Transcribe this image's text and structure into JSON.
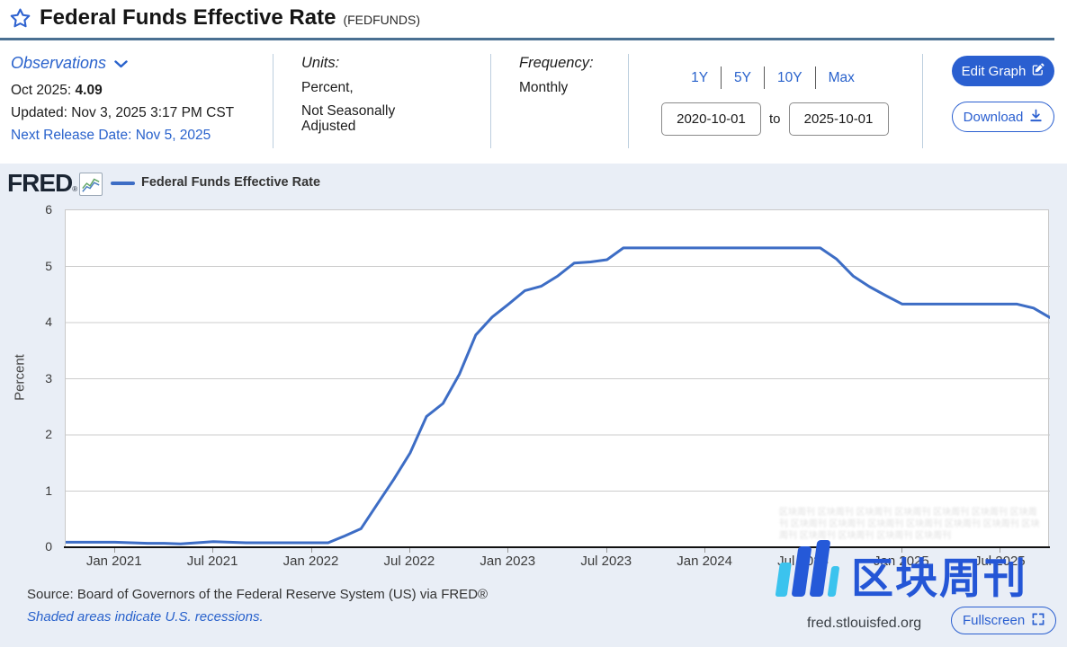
{
  "header": {
    "title": "Federal Funds Effective Rate",
    "series_id": "(FEDFUNDS)"
  },
  "info": {
    "observations": {
      "label": "Observations",
      "latest_period": "Oct 2025:",
      "latest_value": "4.09",
      "updated": "Updated: Nov 3, 2025 3:17 PM CST",
      "next_release": "Next Release Date: Nov 5, 2025"
    },
    "units": {
      "label": "Units:",
      "line1": "Percent,",
      "line2": "Not Seasonally Adjusted"
    },
    "frequency": {
      "label": "Frequency:",
      "value": "Monthly"
    },
    "range": {
      "presets": [
        "1Y",
        "5Y",
        "10Y",
        "Max"
      ],
      "start_date": "2020-10-01",
      "to_label": "to",
      "end_date": "2025-10-01"
    },
    "buttons": {
      "edit_graph": "Edit Graph",
      "download": "Download"
    }
  },
  "graph": {
    "brand": "FRED",
    "brand_reg": "®",
    "legend_label": "Federal Funds Effective Rate",
    "ylabel": "Percent"
  },
  "footer": {
    "source": "Source: Board of Governors of the Federal Reserve System (US) via FRED®",
    "recession_note": "Shaded areas indicate U.S. recessions.",
    "site": "fred.stlouisfed.org",
    "fullscreen_label": "Fullscreen"
  },
  "watermark": {
    "text": "区块周刊"
  },
  "colors": {
    "accent_blue": "#2962cc",
    "button_blue": "#2a5fd0",
    "line_blue": "#3d6dc5",
    "header_rule": "#4a7092",
    "section_bg": "#e9eef6",
    "grid": "#cccccc"
  },
  "chart_data": {
    "type": "line",
    "title": "Federal Funds Effective Rate",
    "xlabel": "",
    "ylabel": "Percent",
    "ylim": [
      0,
      6
    ],
    "y_ticks": [
      0,
      1,
      2,
      3,
      4,
      5,
      6
    ],
    "grid": true,
    "legend_position": "top-left",
    "x_start": "2020-10",
    "x_end": "2025-10",
    "frequency": "Monthly",
    "x_ticks": [
      {
        "month_index": 3,
        "label": "Jan 2021"
      },
      {
        "month_index": 9,
        "label": "Jul 2021"
      },
      {
        "month_index": 15,
        "label": "Jan 2022"
      },
      {
        "month_index": 21,
        "label": "Jul 2022"
      },
      {
        "month_index": 27,
        "label": "Jan 2023"
      },
      {
        "month_index": 33,
        "label": "Jul 2023"
      },
      {
        "month_index": 39,
        "label": "Jan 2024"
      },
      {
        "month_index": 45,
        "label": "Jul 2024"
      },
      {
        "month_index": 51,
        "label": "Jan 2025"
      },
      {
        "month_index": 57,
        "label": "Jul 2025"
      }
    ],
    "series": [
      {
        "name": "Federal Funds Effective Rate",
        "color": "#3d6dc5",
        "values": [
          0.09,
          0.09,
          0.09,
          0.09,
          0.08,
          0.07,
          0.07,
          0.06,
          0.08,
          0.1,
          0.09,
          0.08,
          0.08,
          0.08,
          0.08,
          0.08,
          0.08,
          0.2,
          0.33,
          0.77,
          1.21,
          1.68,
          2.33,
          2.56,
          3.08,
          3.78,
          4.1,
          4.33,
          4.57,
          4.65,
          4.83,
          5.06,
          5.08,
          5.12,
          5.33,
          5.33,
          5.33,
          5.33,
          5.33,
          5.33,
          5.33,
          5.33,
          5.33,
          5.33,
          5.33,
          5.33,
          5.33,
          5.13,
          4.83,
          4.64,
          4.48,
          4.33,
          4.33,
          4.33,
          4.33,
          4.33,
          4.33,
          4.33,
          4.33,
          4.26,
          4.09
        ]
      }
    ]
  }
}
